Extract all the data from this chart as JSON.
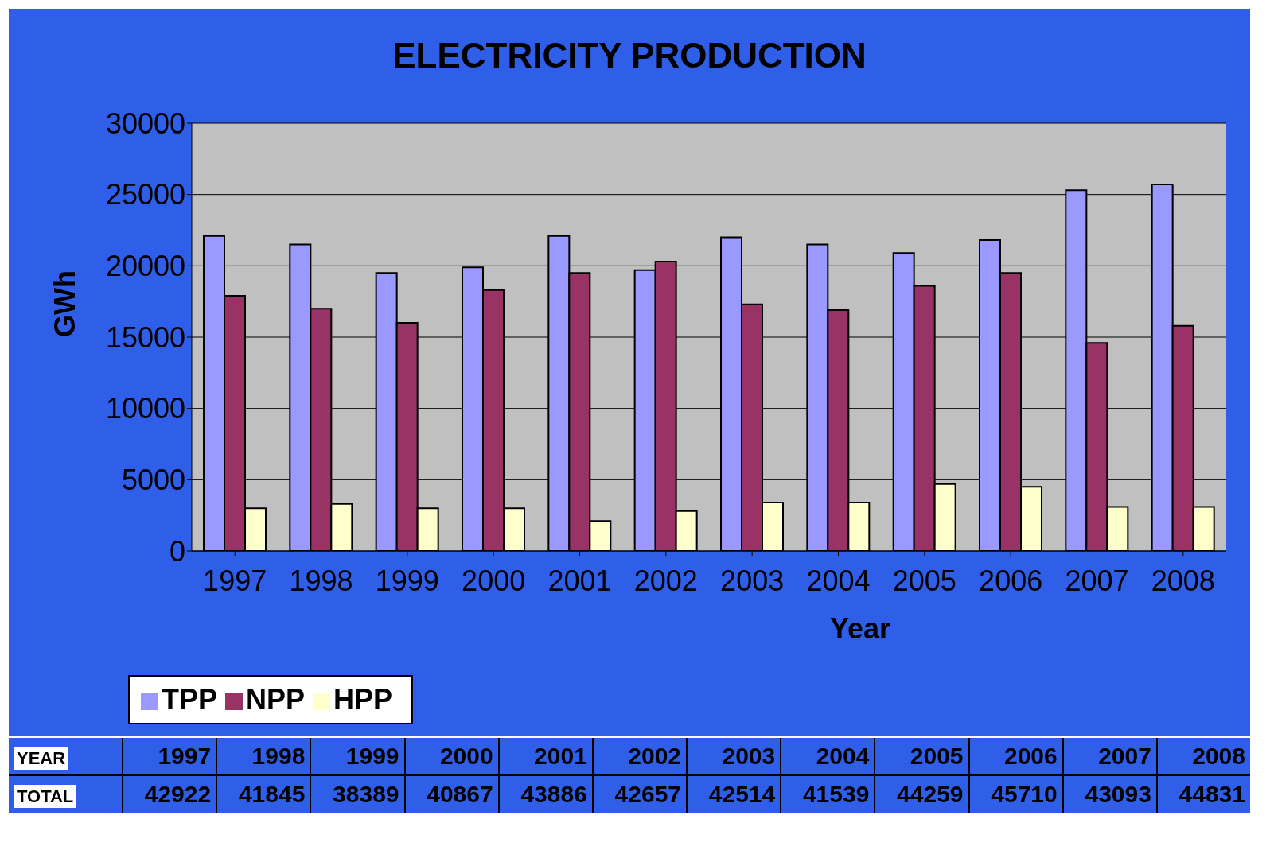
{
  "chart_data": {
    "type": "bar",
    "title": "ELECTRICITY PRODUCTION",
    "xlabel": "Year",
    "ylabel": "GWh",
    "categories": [
      "1997",
      "1998",
      "1999",
      "2000",
      "2001",
      "2002",
      "2003",
      "2004",
      "2005",
      "2006",
      "2007",
      "2008"
    ],
    "series": [
      {
        "name": "TPP",
        "color": "#9999ff",
        "values": [
          22100,
          21500,
          19500,
          19900,
          22100,
          19700,
          22000,
          21500,
          20900,
          21800,
          25300,
          25700
        ]
      },
      {
        "name": "NPP",
        "color": "#993366",
        "values": [
          17900,
          17000,
          16000,
          18300,
          19500,
          20300,
          17300,
          16900,
          18600,
          19500,
          14600,
          15800
        ]
      },
      {
        "name": "HPP",
        "color": "#ffffcc",
        "values": [
          3000,
          3300,
          3000,
          3000,
          2100,
          2800,
          3400,
          3400,
          4700,
          4500,
          3100,
          3100
        ]
      }
    ],
    "annotations": [
      "YEAR",
      "TOTAL",
      "42922",
      "41845",
      "38389",
      "40867",
      "43886",
      "42657",
      "42514",
      "41539",
      "44259",
      "45710",
      "43093",
      "44831"
    ],
    "ylim": [
      0,
      30000
    ],
    "yticks": [
      0,
      5000,
      10000,
      15000,
      20000,
      25000,
      30000
    ],
    "grid": "y",
    "legend": "bottom left"
  }
}
